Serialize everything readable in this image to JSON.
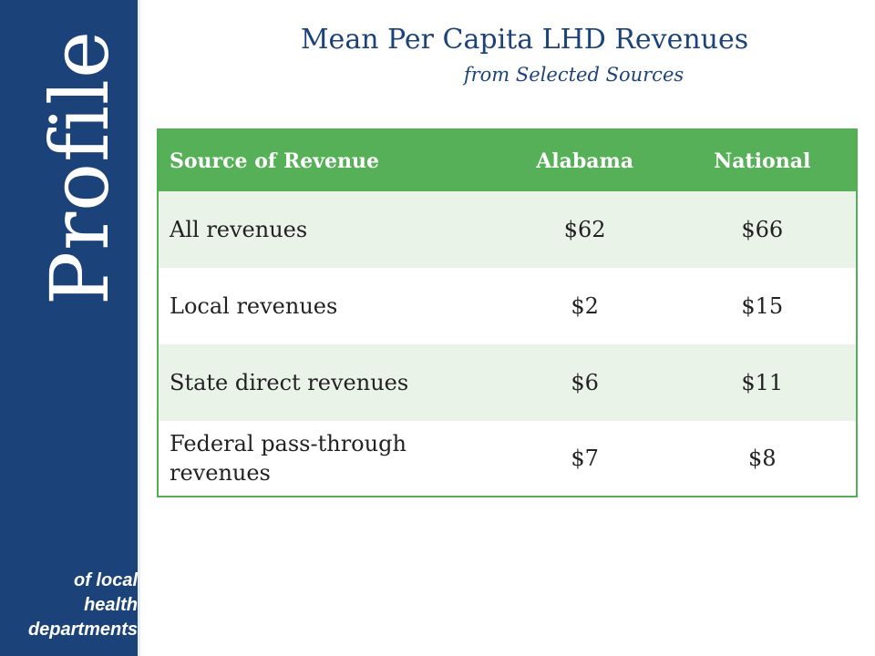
{
  "sidebar": {
    "brand_word": "Profile",
    "subtitle_lines": [
      "of local",
      "health",
      "departments"
    ],
    "background_color": "#1b4379"
  },
  "header": {
    "title": "Mean Per Capita LHD Revenues",
    "subtitle": "from Selected Sources",
    "color": "#1b4379"
  },
  "table": {
    "header_color": "#56b058",
    "stripe_color": "#e9f3e7",
    "columns": [
      "Source of Revenue",
      "Alabama",
      "National"
    ],
    "rows": [
      {
        "source": "All revenues",
        "alabama": "$62",
        "national": "$66"
      },
      {
        "source": "Local revenues",
        "alabama": "$2",
        "national": "$15"
      },
      {
        "source": "State direct revenues",
        "alabama": "$6",
        "national": "$11"
      },
      {
        "source": "Federal pass-through revenues",
        "alabama": "$7",
        "national": "$8"
      }
    ]
  }
}
